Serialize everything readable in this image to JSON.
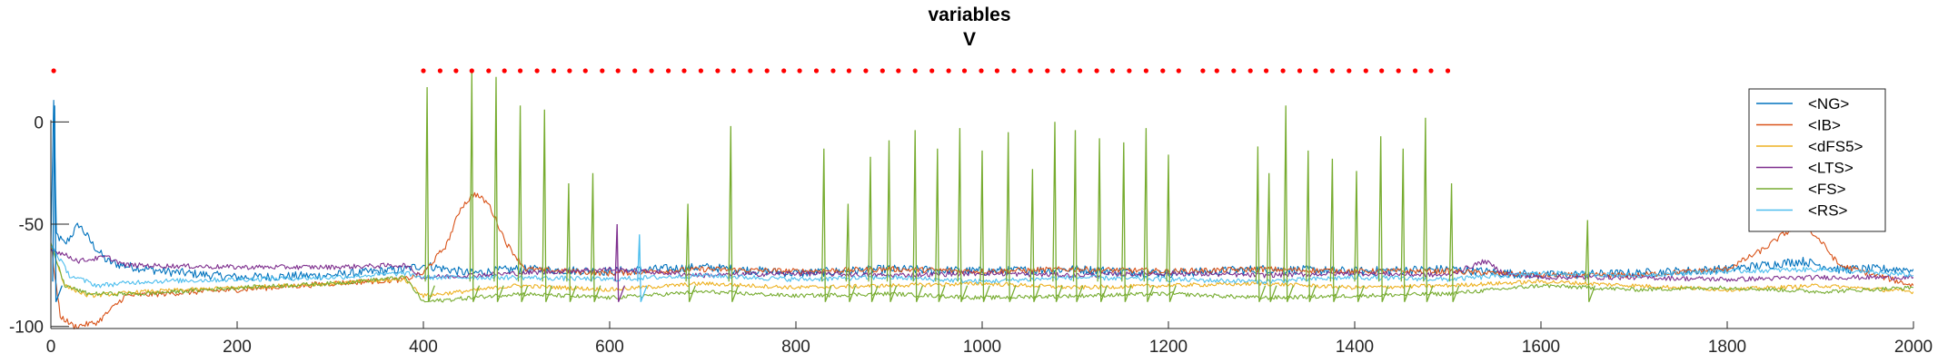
{
  "chart_data": {
    "type": "line",
    "title": "variables",
    "subtitle": "V",
    "xlabel": "",
    "ylabel": "",
    "xlim": [
      0,
      2000
    ],
    "ylim": [
      -101,
      25
    ],
    "x_ticks": [
      0,
      200,
      400,
      600,
      800,
      1000,
      1200,
      1400,
      1600,
      1800,
      2000
    ],
    "y_ticks": [
      -100,
      -50,
      0
    ],
    "grid": false,
    "legend_position": "top-right",
    "series": [
      {
        "name": "<NG>",
        "color": "#0072BD",
        "points": [
          [
            0,
            -60
          ],
          [
            3,
            10
          ],
          [
            6,
            -55
          ],
          [
            15,
            -60
          ],
          [
            30,
            -50
          ],
          [
            45,
            -60
          ],
          [
            60,
            -68
          ],
          [
            75,
            -70
          ],
          [
            120,
            -73
          ],
          [
            200,
            -76
          ],
          [
            300,
            -75
          ],
          [
            380,
            -72
          ],
          [
            400,
            -70
          ],
          [
            450,
            -74
          ],
          [
            500,
            -72
          ],
          [
            600,
            -73
          ],
          [
            700,
            -71
          ],
          [
            800,
            -74
          ],
          [
            900,
            -72
          ],
          [
            1000,
            -73
          ],
          [
            1100,
            -72
          ],
          [
            1200,
            -74
          ],
          [
            1300,
            -72
          ],
          [
            1400,
            -73
          ],
          [
            1500,
            -72
          ],
          [
            1600,
            -75
          ],
          [
            1700,
            -74
          ],
          [
            1800,
            -72
          ],
          [
            1880,
            -68
          ],
          [
            1920,
            -72
          ],
          [
            2000,
            -72
          ]
        ]
      },
      {
        "name": "<IB>",
        "color": "#D95319",
        "points": [
          [
            0,
            -60
          ],
          [
            10,
            -95
          ],
          [
            25,
            -100
          ],
          [
            50,
            -98
          ],
          [
            80,
            -85
          ],
          [
            200,
            -82
          ],
          [
            300,
            -79
          ],
          [
            380,
            -77
          ],
          [
            400,
            -74
          ],
          [
            425,
            -60
          ],
          [
            440,
            -42
          ],
          [
            455,
            -35
          ],
          [
            470,
            -40
          ],
          [
            490,
            -60
          ],
          [
            510,
            -72
          ],
          [
            600,
            -74
          ],
          [
            700,
            -72
          ],
          [
            800,
            -73
          ],
          [
            900,
            -72
          ],
          [
            1000,
            -73
          ],
          [
            1100,
            -72
          ],
          [
            1200,
            -73
          ],
          [
            1300,
            -72
          ],
          [
            1400,
            -73
          ],
          [
            1500,
            -73
          ],
          [
            1600,
            -75
          ],
          [
            1700,
            -75
          ],
          [
            1800,
            -72
          ],
          [
            1840,
            -62
          ],
          [
            1860,
            -55
          ],
          [
            1880,
            -50
          ],
          [
            1900,
            -58
          ],
          [
            1920,
            -70
          ],
          [
            2000,
            -80
          ]
        ]
      },
      {
        "name": "<dFS5>",
        "color": "#EDB120",
        "points": [
          [
            0,
            -60
          ],
          [
            15,
            -80
          ],
          [
            40,
            -85
          ],
          [
            100,
            -83
          ],
          [
            200,
            -81
          ],
          [
            300,
            -79
          ],
          [
            380,
            -77
          ],
          [
            400,
            -85
          ],
          [
            500,
            -80
          ],
          [
            600,
            -82
          ],
          [
            700,
            -79
          ],
          [
            800,
            -81
          ],
          [
            900,
            -80
          ],
          [
            1000,
            -79
          ],
          [
            1100,
            -81
          ],
          [
            1200,
            -80
          ],
          [
            1300,
            -79
          ],
          [
            1400,
            -81
          ],
          [
            1500,
            -80
          ],
          [
            1600,
            -78
          ],
          [
            1700,
            -80
          ],
          [
            1800,
            -82
          ],
          [
            1900,
            -80
          ],
          [
            2000,
            -83
          ]
        ]
      },
      {
        "name": "<LTS>",
        "color": "#7E2F8E",
        "points": [
          [
            0,
            -62
          ],
          [
            30,
            -68
          ],
          [
            60,
            -66
          ],
          [
            80,
            -70
          ],
          [
            200,
            -71
          ],
          [
            300,
            -71
          ],
          [
            380,
            -70
          ],
          [
            400,
            -76
          ],
          [
            500,
            -74
          ],
          [
            600,
            -72
          ],
          [
            700,
            -75
          ],
          [
            800,
            -74
          ],
          [
            900,
            -75
          ],
          [
            1000,
            -74
          ],
          [
            1100,
            -75
          ],
          [
            1200,
            -74
          ],
          [
            1300,
            -75
          ],
          [
            1400,
            -74
          ],
          [
            1500,
            -75
          ],
          [
            1540,
            -68
          ],
          [
            1560,
            -74
          ],
          [
            1600,
            -76
          ],
          [
            1700,
            -76
          ],
          [
            1800,
            -77
          ],
          [
            1900,
            -76
          ],
          [
            2000,
            -76
          ]
        ]
      },
      {
        "name": "<FS>",
        "color": "#77AC30",
        "points": [
          [
            0,
            -60
          ],
          [
            15,
            -80
          ],
          [
            40,
            -84
          ],
          [
            100,
            -84
          ],
          [
            200,
            -81
          ],
          [
            300,
            -79
          ],
          [
            380,
            -76
          ],
          [
            400,
            -88
          ],
          [
            500,
            -84
          ],
          [
            600,
            -86
          ],
          [
            700,
            -83
          ],
          [
            800,
            -85
          ],
          [
            900,
            -84
          ],
          [
            1000,
            -86
          ],
          [
            1100,
            -85
          ],
          [
            1200,
            -84
          ],
          [
            1300,
            -86
          ],
          [
            1400,
            -85
          ],
          [
            1500,
            -84
          ],
          [
            1600,
            -80
          ],
          [
            1700,
            -82
          ],
          [
            1800,
            -81
          ],
          [
            1900,
            -83
          ],
          [
            2000,
            -81
          ]
        ]
      },
      {
        "name": "<RS>",
        "color": "#4DBEEE",
        "points": [
          [
            0,
            -60
          ],
          [
            20,
            -75
          ],
          [
            50,
            -80
          ],
          [
            100,
            -78
          ],
          [
            200,
            -77
          ],
          [
            300,
            -76
          ],
          [
            380,
            -74
          ],
          [
            400,
            -76
          ],
          [
            500,
            -76
          ],
          [
            600,
            -77
          ],
          [
            700,
            -75
          ],
          [
            800,
            -77
          ],
          [
            900,
            -76
          ],
          [
            1000,
            -78
          ],
          [
            1100,
            -76
          ],
          [
            1200,
            -77
          ],
          [
            1300,
            -78
          ],
          [
            1400,
            -76
          ],
          [
            1500,
            -77
          ],
          [
            1600,
            -74
          ],
          [
            1700,
            -75
          ],
          [
            1800,
            -73
          ],
          [
            1900,
            -72
          ],
          [
            2000,
            -75
          ]
        ]
      }
    ],
    "spikes": [
      {
        "x": 4,
        "peak": 8,
        "color": "#0072BD"
      },
      {
        "x": 404,
        "peak": 17,
        "color": "#77AC30"
      },
      {
        "x": 452,
        "peak": 24,
        "color": "#77AC30"
      },
      {
        "x": 478,
        "peak": 22,
        "color": "#77AC30"
      },
      {
        "x": 504,
        "peak": 8,
        "color": "#77AC30"
      },
      {
        "x": 530,
        "peak": 6,
        "color": "#77AC30"
      },
      {
        "x": 556,
        "peak": -30,
        "color": "#77AC30"
      },
      {
        "x": 582,
        "peak": -25,
        "color": "#77AC30"
      },
      {
        "x": 608,
        "peak": -50,
        "color": "#7E2F8E"
      },
      {
        "x": 632,
        "peak": -55,
        "color": "#4DBEEE"
      },
      {
        "x": 684,
        "peak": -40,
        "color": "#77AC30"
      },
      {
        "x": 730,
        "peak": -2,
        "color": "#77AC30"
      },
      {
        "x": 830,
        "peak": -13,
        "color": "#77AC30"
      },
      {
        "x": 856,
        "peak": -40,
        "color": "#77AC30"
      },
      {
        "x": 880,
        "peak": -17,
        "color": "#77AC30"
      },
      {
        "x": 900,
        "peak": -9,
        "color": "#77AC30"
      },
      {
        "x": 928,
        "peak": -4,
        "color": "#77AC30"
      },
      {
        "x": 952,
        "peak": -13,
        "color": "#77AC30"
      },
      {
        "x": 976,
        "peak": -3,
        "color": "#77AC30"
      },
      {
        "x": 1000,
        "peak": -14,
        "color": "#77AC30"
      },
      {
        "x": 1028,
        "peak": -5,
        "color": "#77AC30"
      },
      {
        "x": 1054,
        "peak": -23,
        "color": "#77AC30"
      },
      {
        "x": 1078,
        "peak": 0,
        "color": "#77AC30"
      },
      {
        "x": 1100,
        "peak": -4,
        "color": "#77AC30"
      },
      {
        "x": 1126,
        "peak": -8,
        "color": "#77AC30"
      },
      {
        "x": 1152,
        "peak": -10,
        "color": "#77AC30"
      },
      {
        "x": 1176,
        "peak": -3,
        "color": "#77AC30"
      },
      {
        "x": 1200,
        "peak": -16,
        "color": "#77AC30"
      },
      {
        "x": 1296,
        "peak": -12,
        "color": "#77AC30"
      },
      {
        "x": 1308,
        "peak": -25,
        "color": "#77AC30"
      },
      {
        "x": 1326,
        "peak": 8,
        "color": "#77AC30"
      },
      {
        "x": 1350,
        "peak": -14,
        "color": "#77AC30"
      },
      {
        "x": 1376,
        "peak": -18,
        "color": "#77AC30"
      },
      {
        "x": 1402,
        "peak": -24,
        "color": "#77AC30"
      },
      {
        "x": 1428,
        "peak": -7,
        "color": "#77AC30"
      },
      {
        "x": 1452,
        "peak": -13,
        "color": "#77AC30"
      },
      {
        "x": 1476,
        "peak": 2,
        "color": "#77AC30"
      },
      {
        "x": 1504,
        "peak": -30,
        "color": "#77AC30"
      },
      {
        "x": 1650,
        "peak": -48,
        "color": "#77AC30"
      }
    ],
    "markers": {
      "color": "#FF0000",
      "y": 25,
      "x": [
        3,
        400,
        418,
        435,
        452,
        470,
        487,
        504,
        522,
        540,
        557,
        574,
        592,
        609,
        627,
        645,
        663,
        680,
        698,
        716,
        733,
        751,
        769,
        787,
        804,
        822,
        840,
        857,
        875,
        893,
        910,
        928,
        946,
        964,
        981,
        999,
        1016,
        1034,
        1052,
        1070,
        1087,
        1105,
        1123,
        1140,
        1158,
        1176,
        1194,
        1211,
        1237,
        1252,
        1270,
        1288,
        1305,
        1323,
        1341,
        1358,
        1376,
        1394,
        1412,
        1429,
        1447,
        1465,
        1482,
        1500
      ]
    }
  }
}
